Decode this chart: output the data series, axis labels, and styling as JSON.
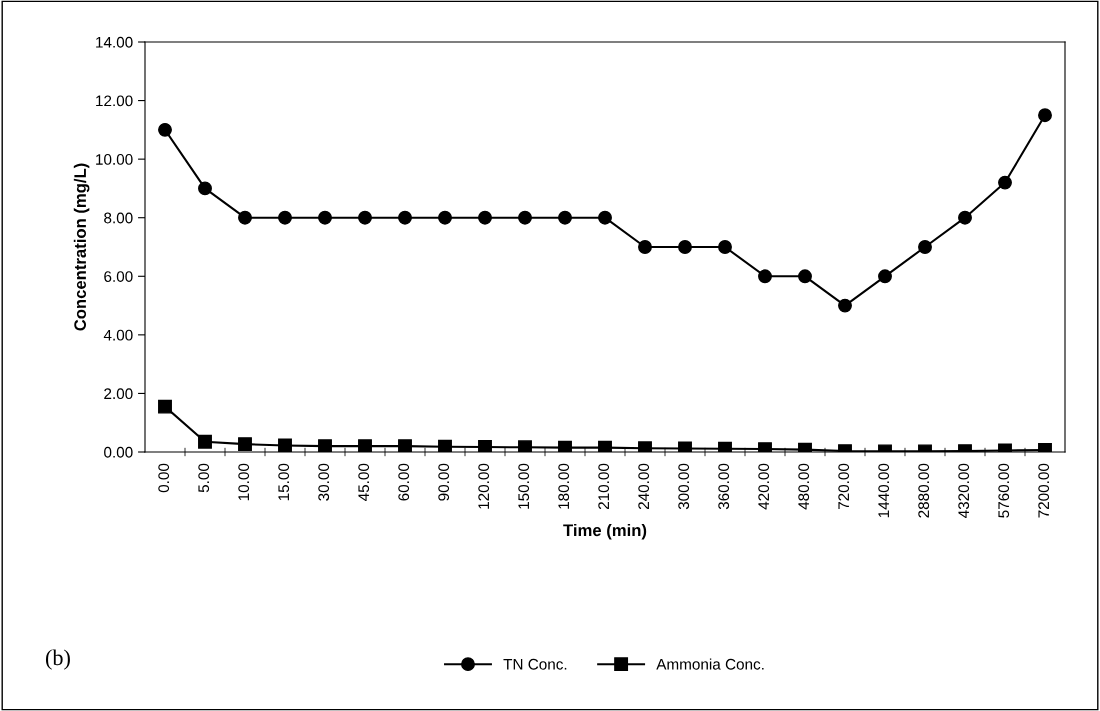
{
  "chart_data": {
    "type": "line",
    "xlabel": "Time (min)",
    "ylabel": "Concentration (mg/L)",
    "categories": [
      "0.00",
      "5.00",
      "10.00",
      "15.00",
      "30.00",
      "45.00",
      "60.00",
      "90.00",
      "120.00",
      "150.00",
      "180.00",
      "210.00",
      "240.00",
      "300.00",
      "360.00",
      "420.00",
      "480.00",
      "720.00",
      "1440.00",
      "2880.00",
      "4320.00",
      "5760.00",
      "7200.00"
    ],
    "series": [
      {
        "name": "TN Conc.",
        "color": "#000000",
        "marker": "circle",
        "values": [
          11,
          9,
          8,
          8,
          8,
          8,
          8,
          8,
          8,
          8,
          8,
          8,
          7,
          7,
          7,
          6,
          6,
          5,
          6,
          7,
          8,
          9.2,
          11.5
        ]
      },
      {
        "name": "Ammonia Conc.",
        "color": "#000000",
        "marker": "square",
        "values": [
          1.55,
          0.35,
          0.27,
          0.22,
          0.2,
          0.2,
          0.2,
          0.18,
          0.17,
          0.16,
          0.15,
          0.15,
          0.13,
          0.12,
          0.11,
          0.1,
          0.08,
          0.03,
          0.02,
          0.02,
          0.03,
          0.05,
          0.07
        ]
      }
    ],
    "ylim": [
      0,
      14
    ],
    "yticks": [
      {
        "value": 0,
        "label": "0.00"
      },
      {
        "value": 2,
        "label": "2.00"
      },
      {
        "value": 4,
        "label": "4.00"
      },
      {
        "value": 6,
        "label": "6.00"
      },
      {
        "value": 8,
        "label": "8.00"
      },
      {
        "value": 10,
        "label": "10.00"
      },
      {
        "value": 12,
        "label": "12.00"
      },
      {
        "value": 14,
        "label": "14.00"
      }
    ],
    "grid": false,
    "legend": "bottom",
    "line_style": "solid",
    "annotations": [
      "(b)"
    ]
  }
}
